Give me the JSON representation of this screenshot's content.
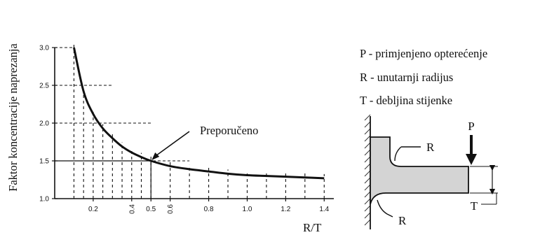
{
  "chart_data": {
    "type": "line",
    "title": "",
    "xlabel": "R/T",
    "ylabel": "Faktor koncentracije naprezanja",
    "xlim": [
      0,
      1.45
    ],
    "ylim": [
      1.0,
      3.0
    ],
    "xticks": [
      {
        "value": 0.2,
        "label": "0.2",
        "rotated": false
      },
      {
        "value": 0.4,
        "label": "0.4",
        "rotated": true
      },
      {
        "value": 0.5,
        "label": "0.5",
        "rotated": false
      },
      {
        "value": 0.6,
        "label": "0.6",
        "rotated": true
      },
      {
        "value": 0.8,
        "label": "0.8",
        "rotated": false
      },
      {
        "value": 1.0,
        "label": "1.0",
        "rotated": false
      },
      {
        "value": 1.2,
        "label": "1.2",
        "rotated": false
      },
      {
        "value": 1.4,
        "label": "1.4",
        "rotated": false
      }
    ],
    "yticks": [
      {
        "value": 1.0,
        "label": "1.0"
      },
      {
        "value": 1.5,
        "label": "1.5"
      },
      {
        "value": 2.0,
        "label": "2.0"
      },
      {
        "value": 2.5,
        "label": "2.5"
      },
      {
        "value": 3.0,
        "label": "3.0"
      }
    ],
    "grid": "dashed",
    "series": [
      {
        "x": [
          0.1,
          0.15,
          0.2,
          0.25,
          0.3,
          0.35,
          0.4,
          0.45,
          0.5,
          0.6,
          0.7,
          0.8,
          0.9,
          1.0,
          1.1,
          1.2,
          1.3,
          1.4
        ],
        "y": [
          3.0,
          2.42,
          2.12,
          1.93,
          1.8,
          1.69,
          1.61,
          1.55,
          1.5,
          1.43,
          1.39,
          1.36,
          1.33,
          1.31,
          1.3,
          1.29,
          1.28,
          1.27
        ]
      }
    ],
    "annotation": {
      "text": "Preporučeno",
      "x": 0.5,
      "y": 1.5
    }
  },
  "legend": [
    "P - primjenjeno opterećenje",
    "R - unutarnji radijus",
    "T - debljina stijenke"
  ],
  "diagram": {
    "load_label": "P",
    "radius_label_top": "R",
    "radius_label_bottom": "R",
    "thickness_label": "T"
  }
}
